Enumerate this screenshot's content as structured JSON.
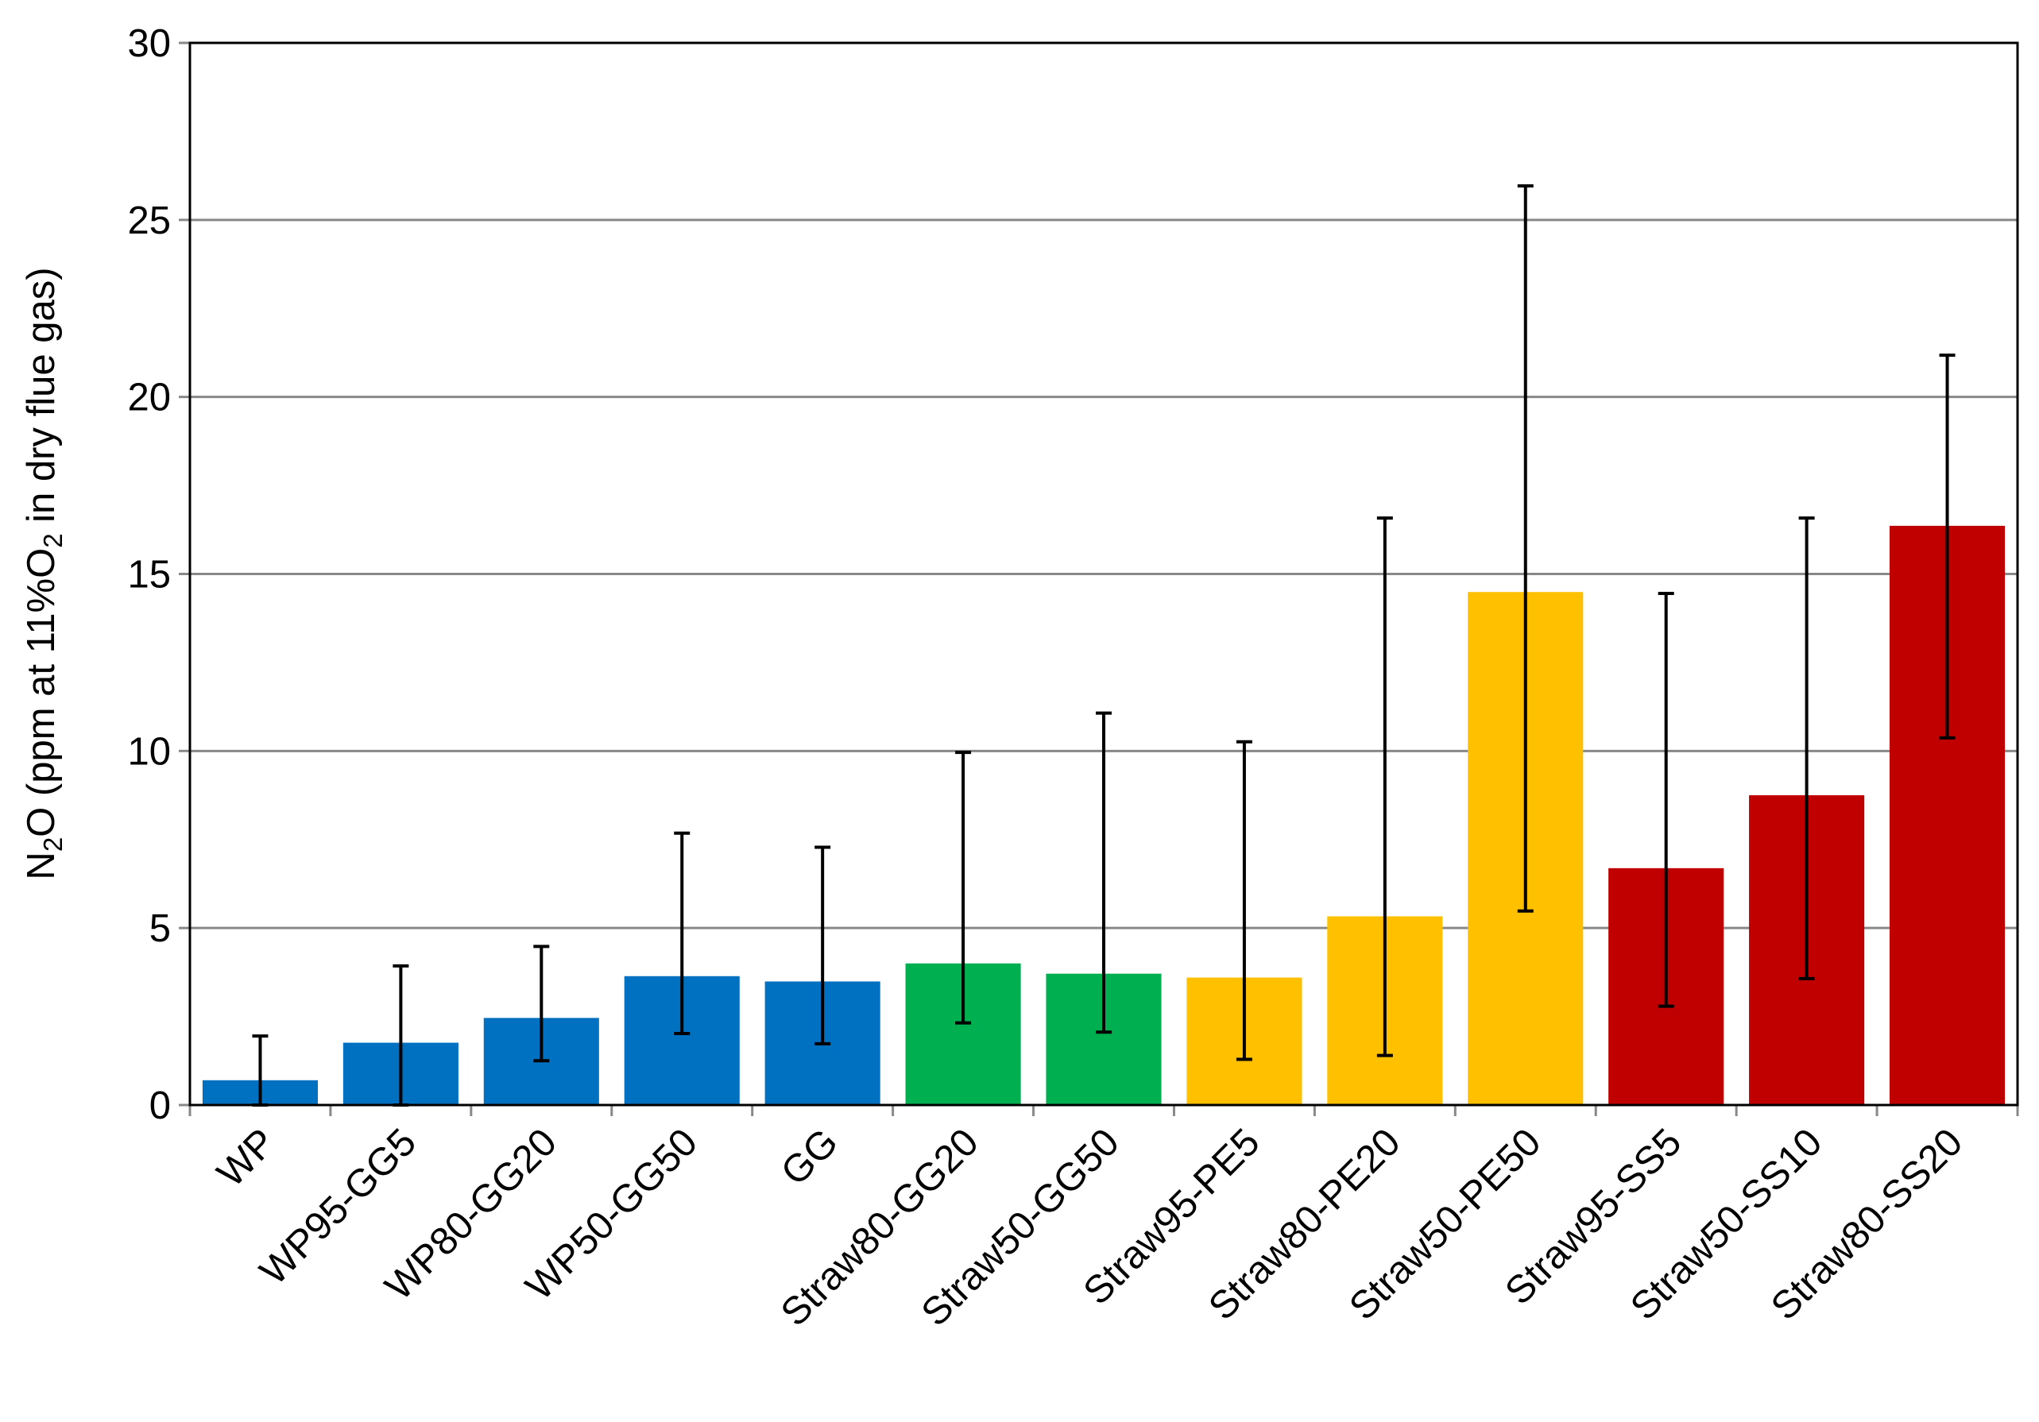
{
  "chart_data": {
    "type": "bar",
    "title": "",
    "xlabel": "",
    "ylabel": {
      "prefix": "N",
      "sub1": "2",
      "mid": "O (ppm at 11%O",
      "sub2": "2",
      "suffix": " in dry flue gas)"
    },
    "ylim": [
      0,
      30
    ],
    "yticks": [
      0,
      5,
      10,
      15,
      20,
      25,
      30
    ],
    "grid": true,
    "legend": "none",
    "colors": {
      "WP_GG": "#0070C0",
      "Straw_GG": "#00B050",
      "Straw_PE": "#FFC000",
      "Straw_SS": "#C00000"
    },
    "categories": [
      "WP",
      "WP95-GG5",
      "WP80-GG20",
      "WP50-GG50",
      "GG",
      "Straw80-GG20",
      "Straw50-GG50",
      "Straw95-PE5",
      "Straw80-PE20",
      "Straw50-PE50",
      "Straw95-SS5",
      "Straw50-SS10",
      "Straw80-SS20"
    ],
    "values": [
      0.7,
      1.76,
      2.46,
      3.64,
      3.49,
      4.0,
      3.71,
      3.6,
      5.33,
      14.49,
      6.69,
      8.75,
      16.36
    ],
    "error_low": [
      0,
      0,
      1.25,
      2.02,
      1.73,
      2.32,
      2.06,
      1.29,
      1.4,
      5.48,
      2.79,
      3.57,
      10.37
    ],
    "error_high": [
      1.95,
      3.93,
      4.48,
      7.68,
      7.28,
      9.96,
      11.07,
      10.26,
      16.58,
      25.96,
      14.45,
      16.58,
      21.18
    ],
    "bar_colors": [
      "#0070C0",
      "#0070C0",
      "#0070C0",
      "#0070C0",
      "#0070C0",
      "#00B050",
      "#00B050",
      "#FFC000",
      "#FFC000",
      "#FFC000",
      "#C00000",
      "#C00000",
      "#C00000"
    ]
  }
}
